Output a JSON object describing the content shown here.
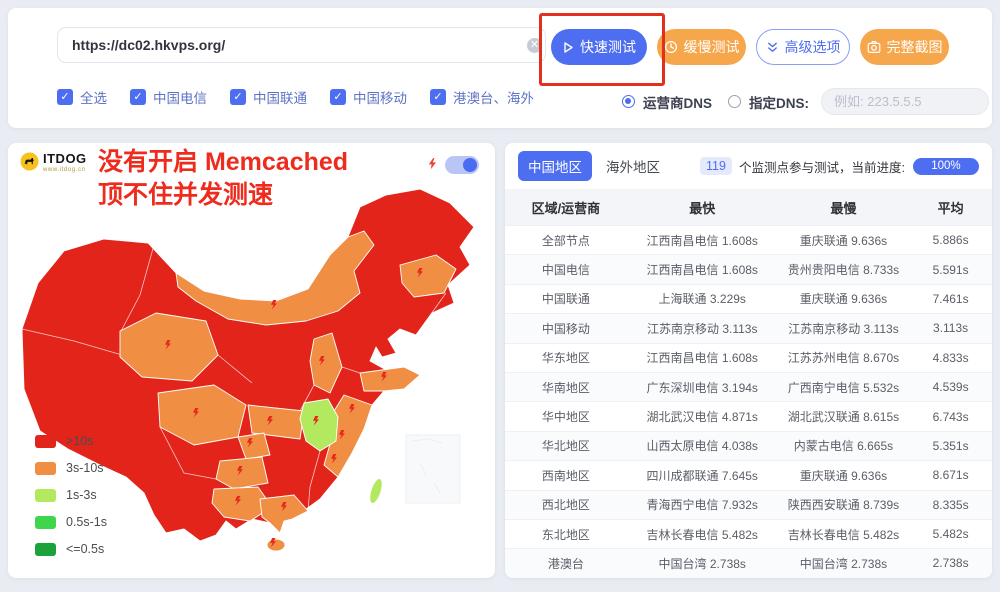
{
  "toolbar": {
    "url": "https://dc02.hkvps.org/",
    "buttons": {
      "quick": "快速测试",
      "slow": "缓慢测试",
      "advanced": "高级选项",
      "screenshot": "完整截图"
    },
    "checkboxes": [
      "全选",
      "中国电信",
      "中国联通",
      "中国移动",
      "港澳台、海外"
    ],
    "dns": {
      "carrier": "运营商DNS",
      "custom": "指定DNS:",
      "placeholder": "例如: 223.5.5.5"
    }
  },
  "map_panel": {
    "logo_title": "ITDOG",
    "logo_subtitle": "www.itdog.cn",
    "overlay": [
      "没有开启 Memcached",
      "顶不住并发测速"
    ],
    "legend": [
      {
        "label": ">10s",
        "color": "#e3241b"
      },
      {
        "label": "3s-10s",
        "color": "#f08e44"
      },
      {
        "label": "1s-3s",
        "color": "#b3e95e"
      },
      {
        "label": "0.5s-1s",
        "color": "#3fd64e"
      },
      {
        "label": "<=0.5s",
        "color": "#1ba23a"
      }
    ]
  },
  "results_panel": {
    "tabs": [
      "中国地区",
      "海外地区"
    ],
    "monitor_count": "119",
    "status_text": "个监测点参与测试，当前进度:",
    "progress": "100%",
    "table": {
      "headers": [
        "区域/运营商",
        "最快",
        "最慢",
        "平均"
      ],
      "rows": [
        [
          "全部节点",
          "江西南昌电信 1.608s",
          "重庆联通 9.636s",
          "5.886s"
        ],
        [
          "中国电信",
          "江西南昌电信 1.608s",
          "贵州贵阳电信 8.733s",
          "5.591s"
        ],
        [
          "中国联通",
          "上海联通 3.229s",
          "重庆联通 9.636s",
          "7.461s"
        ],
        [
          "中国移动",
          "江苏南京移动 3.113s",
          "江苏南京移动 3.113s",
          "3.113s"
        ],
        [
          "华东地区",
          "江西南昌电信 1.608s",
          "江苏苏州电信 8.670s",
          "4.833s"
        ],
        [
          "华南地区",
          "广东深圳电信 3.194s",
          "广西南宁电信 5.532s",
          "4.539s"
        ],
        [
          "华中地区",
          "湖北武汉电信 4.871s",
          "湖北武汉联通 8.615s",
          "6.743s"
        ],
        [
          "华北地区",
          "山西太原电信 4.038s",
          "内蒙古电信 6.665s",
          "5.351s"
        ],
        [
          "西南地区",
          "四川成都联通 7.645s",
          "重庆联通 9.636s",
          "8.671s"
        ],
        [
          "西北地区",
          "青海西宁电信 7.932s",
          "陕西西安联通 8.739s",
          "8.335s"
        ],
        [
          "东北地区",
          "吉林长春电信 5.482s",
          "吉林长春电信 5.482s",
          "5.482s"
        ],
        [
          "港澳台",
          "中国台湾 2.738s",
          "中国台湾 2.738s",
          "2.738s"
        ]
      ]
    }
  },
  "colors": {
    "accent_blue": "#4e6ef2",
    "accent_orange": "#f6a74c",
    "annotation_red": "#e2301f",
    "map_red": "#e3241b",
    "map_orange": "#f08e44",
    "map_green": "#b3e95e"
  }
}
